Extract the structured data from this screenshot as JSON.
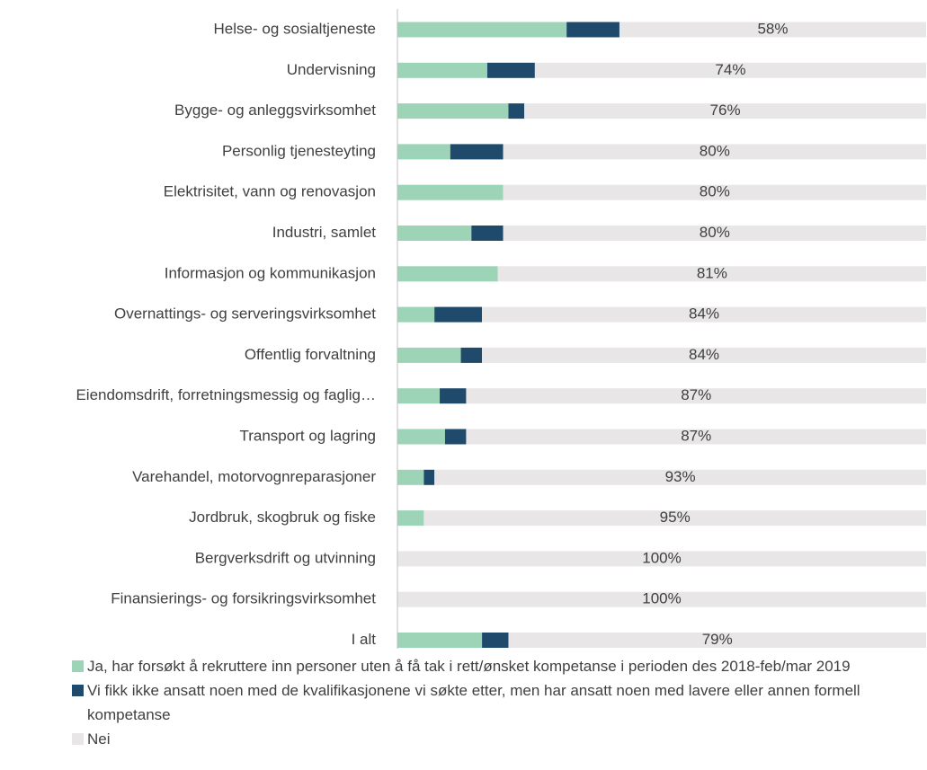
{
  "chart_data": {
    "type": "stacked-bar-horizontal",
    "categories": [
      "Helse- og sosialtjeneste",
      "Undervisning",
      "Bygge- og anleggsvirksomhet",
      "Personlig tjenesteyting",
      "Elektrisitet, vann og renovasjon",
      "Industri, samlet",
      "Informasjon og kommunikasjon",
      "Overnattings- og serveringsvirksomhet",
      "Offentlig forvaltning",
      "Eiendomsdrift, forretningsmessig og faglig…",
      "Transport og lagring",
      "Varehandel, motorvognreparasjoner",
      "Jordbruk, skogbruk og fiske",
      "Bergverksdrift og utvinning",
      "Finansierings- og forsikringsvirksomhet",
      "I alt"
    ],
    "series": [
      {
        "name": "Ja, har forsøkt å rekruttere inn personer uten å få tak i  rett/ønsket kompetanse i perioden des 2018-feb/mar 2019",
        "color": "#9dd3b6",
        "values": [
          32,
          17,
          21,
          10,
          20,
          14,
          19,
          7,
          12,
          8,
          9,
          5,
          5,
          0,
          0,
          16
        ]
      },
      {
        "name": "Vi fikk ikke ansatt noen med de kvalifikasjonene vi søkte etter, men har ansatt noen med lavere eller annen formell kompetanse",
        "color": "#1f4a6b",
        "values": [
          10,
          9,
          3,
          10,
          0,
          6,
          0,
          9,
          4,
          5,
          4,
          2,
          0,
          0,
          0,
          5
        ]
      },
      {
        "name": "Nei",
        "color": "#e8e6e6",
        "values": [
          58,
          74,
          76,
          80,
          80,
          80,
          81,
          84,
          84,
          87,
          87,
          93,
          95,
          100,
          100,
          79
        ],
        "value_labels": [
          "58%",
          "74%",
          "76%",
          "80%",
          "80%",
          "80%",
          "81%",
          "84%",
          "84%",
          "87%",
          "87%",
          "93%",
          "95%",
          "100%",
          "100%",
          "79%"
        ]
      }
    ],
    "xlim": [
      0,
      100
    ]
  }
}
